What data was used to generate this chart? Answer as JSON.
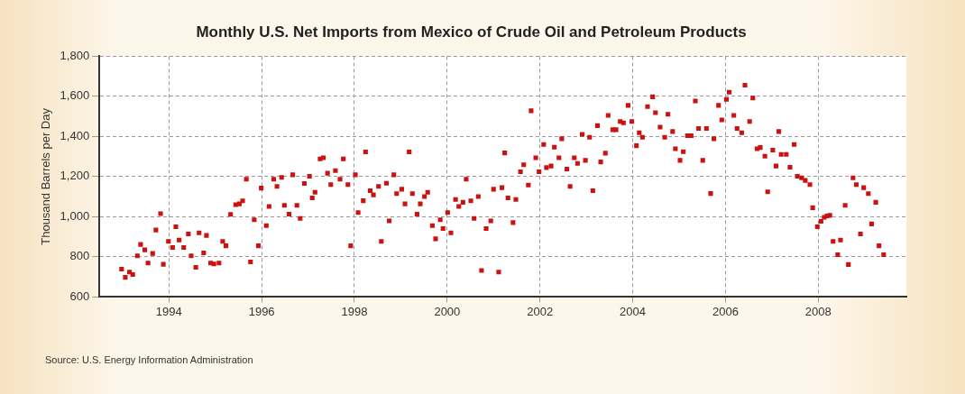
{
  "chart_data": {
    "type": "scatter",
    "title": "Monthly U.S. Net Imports from Mexico of Crude Oil and Petroleum Products",
    "ylabel": "Thousand Barrels per Day",
    "annotations": [
      "Source: U.S. Energy Information Administration"
    ],
    "marker": "square",
    "grid": true,
    "color": "#cc1111",
    "xlim": [
      1992.5,
      2009.9
    ],
    "xticks": [
      1994,
      1996,
      1998,
      2000,
      2002,
      2004,
      2006,
      2008
    ],
    "ylim": [
      600,
      1800
    ],
    "yticks": [
      {
        "value": 600,
        "label": "600"
      },
      {
        "value": 800,
        "label": "800"
      },
      {
        "value": 1000,
        "label": "1,000"
      },
      {
        "value": 1200,
        "label": "1,200"
      },
      {
        "value": 1400,
        "label": "1,400"
      },
      {
        "value": 1600,
        "label": "1,600"
      },
      {
        "value": 1800,
        "label": "1,800"
      }
    ],
    "x": [
      1992.98,
      1993.06,
      1993.15,
      1993.22,
      1993.32,
      1993.39,
      1993.48,
      1993.55,
      1993.65,
      1993.72,
      1993.82,
      1993.88,
      1993.99,
      1994.08,
      1994.15,
      1994.22,
      1994.32,
      1994.42,
      1994.48,
      1994.58,
      1994.65,
      1994.75,
      1994.81,
      1994.9,
      1994.97,
      1995.08,
      1995.16,
      1995.23,
      1995.33,
      1995.44,
      1995.52,
      1995.59,
      1995.67,
      1995.76,
      1995.84,
      1995.93,
      1995.99,
      1996.1,
      1996.16,
      1996.26,
      1996.33,
      1996.43,
      1996.49,
      1996.59,
      1996.67,
      1996.76,
      1996.83,
      1996.92,
      1997.03,
      1997.09,
      1997.15,
      1997.26,
      1997.33,
      1997.42,
      1997.49,
      1997.59,
      1997.69,
      1997.76,
      1997.86,
      1997.92,
      1998.02,
      1998.08,
      1998.19,
      1998.24,
      1998.34,
      1998.41,
      1998.52,
      1998.58,
      1998.69,
      1998.75,
      1998.85,
      1998.91,
      1999.02,
      1999.09,
      1999.18,
      1999.25,
      1999.35,
      1999.42,
      1999.51,
      1999.58,
      1999.68,
      1999.75,
      1999.85,
      1999.91,
      2000.01,
      2000.08,
      2000.18,
      2000.25,
      2000.34,
      2000.41,
      2000.51,
      2000.58,
      2000.67,
      2000.74,
      2000.84,
      2000.94,
      2001.0,
      2001.11,
      2001.18,
      2001.24,
      2001.31,
      2001.42,
      2001.48,
      2001.58,
      2001.65,
      2001.75,
      2001.81,
      2001.91,
      2001.98,
      2002.08,
      2002.14,
      2002.24,
      2002.31,
      2002.41,
      2002.47,
      2002.58,
      2002.65,
      2002.74,
      2002.81,
      2002.91,
      2002.98,
      2003.07,
      2003.14,
      2003.24,
      2003.31,
      2003.41,
      2003.47,
      2003.57,
      2003.64,
      2003.73,
      2003.8,
      2003.9,
      2003.98,
      2004.08,
      2004.14,
      2004.21,
      2004.32,
      2004.43,
      2004.49,
      2004.59,
      2004.69,
      2004.76,
      2004.86,
      2004.92,
      2005.02,
      2005.09,
      2005.18,
      2005.26,
      2005.35,
      2005.42,
      2005.51,
      2005.59,
      2005.68,
      2005.75,
      2005.85,
      2005.92,
      2006.02,
      2006.08,
      2006.18,
      2006.25,
      2006.35,
      2006.42,
      2006.52,
      2006.59,
      2006.68,
      2006.75,
      2006.85,
      2006.91,
      2007.02,
      2007.09,
      2007.15,
      2007.2,
      2007.31,
      2007.39,
      2007.48,
      2007.55,
      2007.64,
      2007.72,
      2007.82,
      2007.88,
      2007.98,
      2008.06,
      2008.13,
      2008.19,
      2008.25,
      2008.32,
      2008.42,
      2008.48,
      2008.58,
      2008.65,
      2008.75,
      2008.82,
      2008.91,
      2008.98,
      2009.08,
      2009.15,
      2009.24,
      2009.31,
      2009.41
    ],
    "values": [
      739,
      698,
      724,
      712,
      805,
      862,
      835,
      769,
      817,
      934,
      1015,
      763,
      877,
      847,
      950,
      884,
      847,
      914,
      805,
      748,
      920,
      820,
      907,
      769,
      765,
      769,
      877,
      855,
      1012,
      1060,
      1064,
      1079,
      1187,
      775,
      985,
      855,
      1143,
      956,
      1051,
      1187,
      1151,
      1196,
      1057,
      1013,
      1209,
      1057,
      992,
      1166,
      1202,
      1094,
      1122,
      1288,
      1294,
      1217,
      1160,
      1230,
      1187,
      1288,
      1160,
      855,
      1209,
      1021,
      1080,
      1323,
      1130,
      1109,
      1151,
      877,
      1167,
      979,
      1209,
      1115,
      1137,
      1064,
      1323,
      1115,
      1013,
      1064,
      1101,
      1122,
      956,
      890,
      985,
      941,
      1021,
      920,
      1086,
      1051,
      1072,
      1187,
      1079,
      992,
      1101,
      732,
      941,
      979,
      1137,
      724,
      1145,
      1318,
      1094,
      971,
      1086,
      1224,
      1259,
      1158,
      1528,
      1294,
      1224,
      1360,
      1245,
      1253,
      1347,
      1294,
      1389,
      1238,
      1151,
      1294,
      1266,
      1411,
      1281,
      1396,
      1130,
      1454,
      1273,
      1317,
      1505,
      1434,
      1434,
      1475,
      1468,
      1555,
      1475,
      1354,
      1419,
      1396,
      1549,
      1598,
      1519,
      1447,
      1396,
      1511,
      1425,
      1339,
      1281,
      1324,
      1404,
      1404,
      1577,
      1440,
      1281,
      1440,
      1116,
      1389,
      1555,
      1483,
      1585,
      1621,
      1505,
      1440,
      1419,
      1656,
      1475,
      1592,
      1339,
      1345,
      1302,
      1124,
      1332,
      1253,
      1425,
      1311,
      1311,
      1247,
      1360,
      1202,
      1194,
      1181,
      1160,
      1045,
      950,
      977,
      997,
      1004,
      1007,
      877,
      811,
      884,
      1057,
      762,
      1194,
      1160,
      914,
      1145,
      1115,
      964,
      1072,
      855,
      811
    ]
  }
}
